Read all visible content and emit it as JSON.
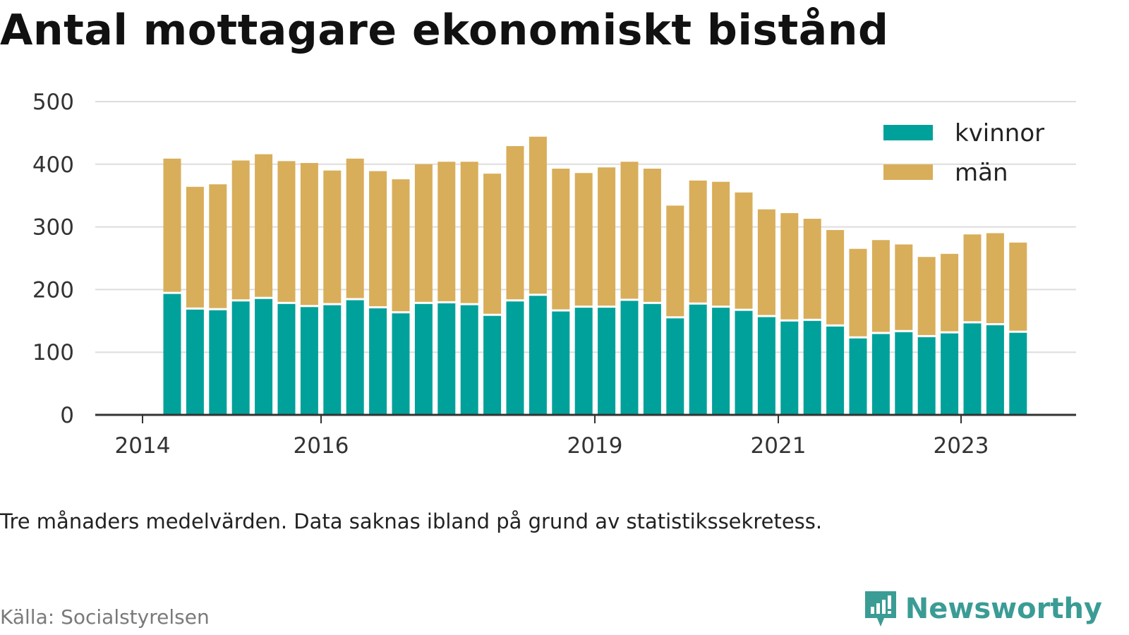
{
  "header": {
    "title": "Antal mottagare ekonomiskt bistånd"
  },
  "footer": {
    "note": "Tre månaders medelvärden. Data saknas ibland på grund av statistikssekretess.",
    "source": "Källa: Socialstyrelsen",
    "brand": "Newsworthy",
    "brand_icon": "bar-chart-exclamation-icon"
  },
  "colors": {
    "kvinnor": "#00a19a",
    "man": "#d8ae5a",
    "grid": "#dddddd",
    "axis": "#333333",
    "brand": "#3a9c95"
  },
  "chart_data": {
    "type": "bar",
    "stacked": true,
    "title": "Antal mottagare ekonomiskt bistånd",
    "ylim": [
      0,
      500
    ],
    "y_ticks": [
      0,
      100,
      200,
      300,
      400,
      500
    ],
    "x_tick_labels": [
      "2014",
      "2016",
      "2019",
      "2021",
      "2023"
    ],
    "grid": "horizontal",
    "legend_position": "top-right",
    "series": [
      {
        "name": "kvinnor",
        "values": [
          193,
          168,
          167,
          181,
          185,
          177,
          172,
          175,
          183,
          170,
          162,
          177,
          178,
          175,
          158,
          181,
          190,
          165,
          171,
          171,
          182,
          177,
          154,
          176,
          171,
          166,
          156,
          149,
          150,
          141,
          122,
          129,
          132,
          124,
          130,
          146,
          143,
          131
        ]
      },
      {
        "name": "män",
        "values": [
          216,
          196,
          201,
          225,
          231,
          228,
          230,
          215,
          226,
          219,
          214,
          223,
          226,
          229,
          227,
          248,
          254,
          228,
          215,
          224,
          222,
          216,
          180,
          198,
          201,
          189,
          172,
          173,
          163,
          154,
          143,
          150,
          140,
          128,
          127,
          142,
          147,
          144
        ]
      }
    ],
    "x_ticks_bar_index": [
      -1,
      7,
      19,
      27,
      35
    ]
  }
}
